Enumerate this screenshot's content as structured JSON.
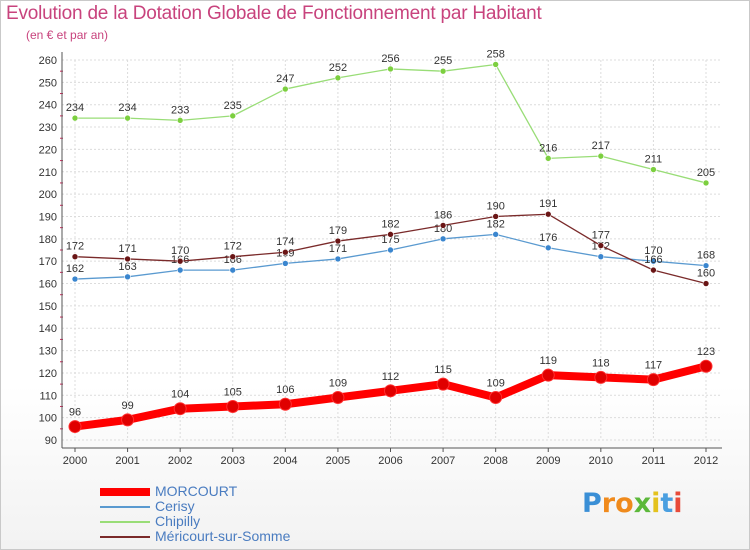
{
  "header": {
    "title": "Evolution de la Dotation Globale de Fonctionnement par Habitant",
    "subtitle": "(en € et par an)"
  },
  "logo": {
    "text": "Proxiti",
    "letter_colors": [
      "#3a8fd6",
      "#f08a1c",
      "#ef8a1c",
      "#5cb83a",
      "#e4c21e",
      "#4a9fe0",
      "#e84b3a"
    ]
  },
  "colors": {
    "title": "#c8437d",
    "legend_text": "#4a7cc0",
    "grid": "#dcdcdc",
    "axis_tick_mark": "#d2245a"
  },
  "chart_data": {
    "type": "line",
    "x": [
      "2000",
      "2001",
      "2002",
      "2003",
      "2004",
      "2005",
      "2006",
      "2007",
      "2008",
      "2009",
      "2010",
      "2011",
      "2012"
    ],
    "ylim": [
      90,
      260
    ],
    "yticks": [
      90,
      100,
      110,
      120,
      130,
      140,
      150,
      160,
      170,
      180,
      190,
      200,
      210,
      220,
      230,
      240,
      250,
      260
    ],
    "grid": true,
    "legend_position": "bottom-left",
    "title": "Evolution de la Dotation Globale de Fonctionnement par Habitant",
    "ylabel": "(en € et par an)",
    "series": [
      {
        "name": "MORCOURT",
        "values": [
          96,
          99,
          104,
          105,
          106,
          109,
          112,
          115,
          109,
          119,
          118,
          117,
          123
        ],
        "color": "#ff0000",
        "marker_color": "#e00000",
        "emphasis": "thick"
      },
      {
        "name": "Cerisy",
        "values": [
          162,
          163,
          166,
          166,
          169,
          171,
          175,
          180,
          182,
          176,
          172,
          170,
          168
        ],
        "color": "#5a9ad0",
        "marker_color": "#3a86cf",
        "emphasis": "normal"
      },
      {
        "name": "Chipilly",
        "values": [
          234,
          234,
          233,
          235,
          247,
          252,
          256,
          255,
          258,
          216,
          217,
          211,
          205
        ],
        "color": "#99dd77",
        "marker_color": "#7ccf3f",
        "emphasis": "normal"
      },
      {
        "name": "Méricourt-sur-Somme",
        "values": [
          172,
          171,
          170,
          172,
          174,
          179,
          182,
          186,
          190,
          191,
          177,
          166,
          160
        ],
        "color": "#7a2a2a",
        "marker_color": "#6a1515",
        "emphasis": "normal"
      }
    ]
  }
}
